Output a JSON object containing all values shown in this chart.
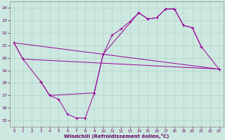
{
  "bg_color": "#cde8e0",
  "line_color": "#990099",
  "grid_color": "#a8cfc0",
  "xlabel": "Windchill (Refroidissement éolien,°C)",
  "x_ticks": [
    0,
    1,
    2,
    3,
    4,
    5,
    6,
    7,
    8,
    9,
    10,
    11,
    12,
    13,
    14,
    15,
    16,
    17,
    18,
    19,
    20,
    21,
    22,
    23
  ],
  "y_ticks": [
    15,
    16,
    17,
    18,
    19,
    20,
    21,
    22,
    23,
    24
  ],
  "xlim": [
    -0.5,
    23.5
  ],
  "ylim": [
    14.5,
    24.5
  ],
  "line_main": [
    21.2,
    19.9,
    null,
    18.1,
    17.0,
    16.7,
    15.5,
    15.2,
    15.2,
    17.2,
    20.3,
    21.8,
    22.3,
    22.9,
    23.6,
    23.1,
    23.2,
    23.9,
    23.9,
    22.6,
    22.4,
    20.9,
    null,
    19.1
  ],
  "line2_x": [
    0,
    1,
    3,
    4,
    9,
    10,
    14,
    15,
    16,
    17,
    18,
    19,
    20,
    21,
    23
  ],
  "line2_y": [
    21.2,
    19.9,
    18.1,
    17.0,
    17.2,
    20.3,
    23.6,
    23.1,
    23.2,
    23.9,
    23.9,
    22.6,
    22.4,
    20.9,
    19.1
  ],
  "line3_x": [
    0,
    23
  ],
  "line3_y": [
    21.2,
    19.1
  ],
  "line4_x": [
    1,
    23
  ],
  "line4_y": [
    19.9,
    19.1
  ]
}
